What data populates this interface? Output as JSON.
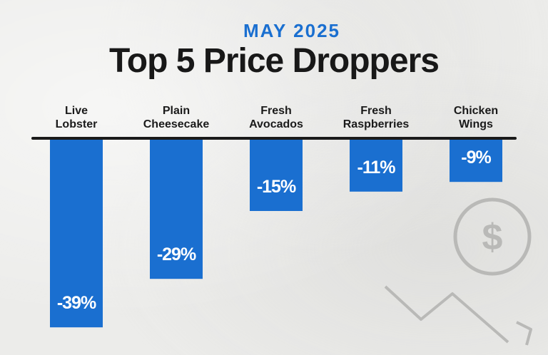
{
  "header": {
    "eyebrow": "MAY 2025",
    "title": "Top 5 Price Droppers"
  },
  "colors": {
    "accent": "#1a6fd0",
    "bar": "#1a6fd0",
    "title": "#181818",
    "baseline": "#1a1a1a",
    "decoration": "#b9b9b7"
  },
  "decoration": [
    "dollar-coin-icon",
    "downward-trend-arrow-icon"
  ],
  "chart_data": {
    "type": "bar",
    "orientation": "vertical-downward",
    "categories": [
      [
        "Live",
        "Lobster"
      ],
      [
        "Plain",
        "Cheesecake"
      ],
      [
        "Fresh",
        "Avocados"
      ],
      [
        "Fresh",
        "Raspberries"
      ],
      [
        "Chicken",
        "Wings"
      ]
    ],
    "values": [
      -39,
      -29,
      -15,
      -11,
      -9
    ],
    "value_labels": [
      "-39%",
      "-29%",
      "-15%",
      "-11%",
      "-9%"
    ],
    "unit": "%",
    "ylim": [
      -40,
      0
    ],
    "grid": false,
    "legend": "none"
  }
}
